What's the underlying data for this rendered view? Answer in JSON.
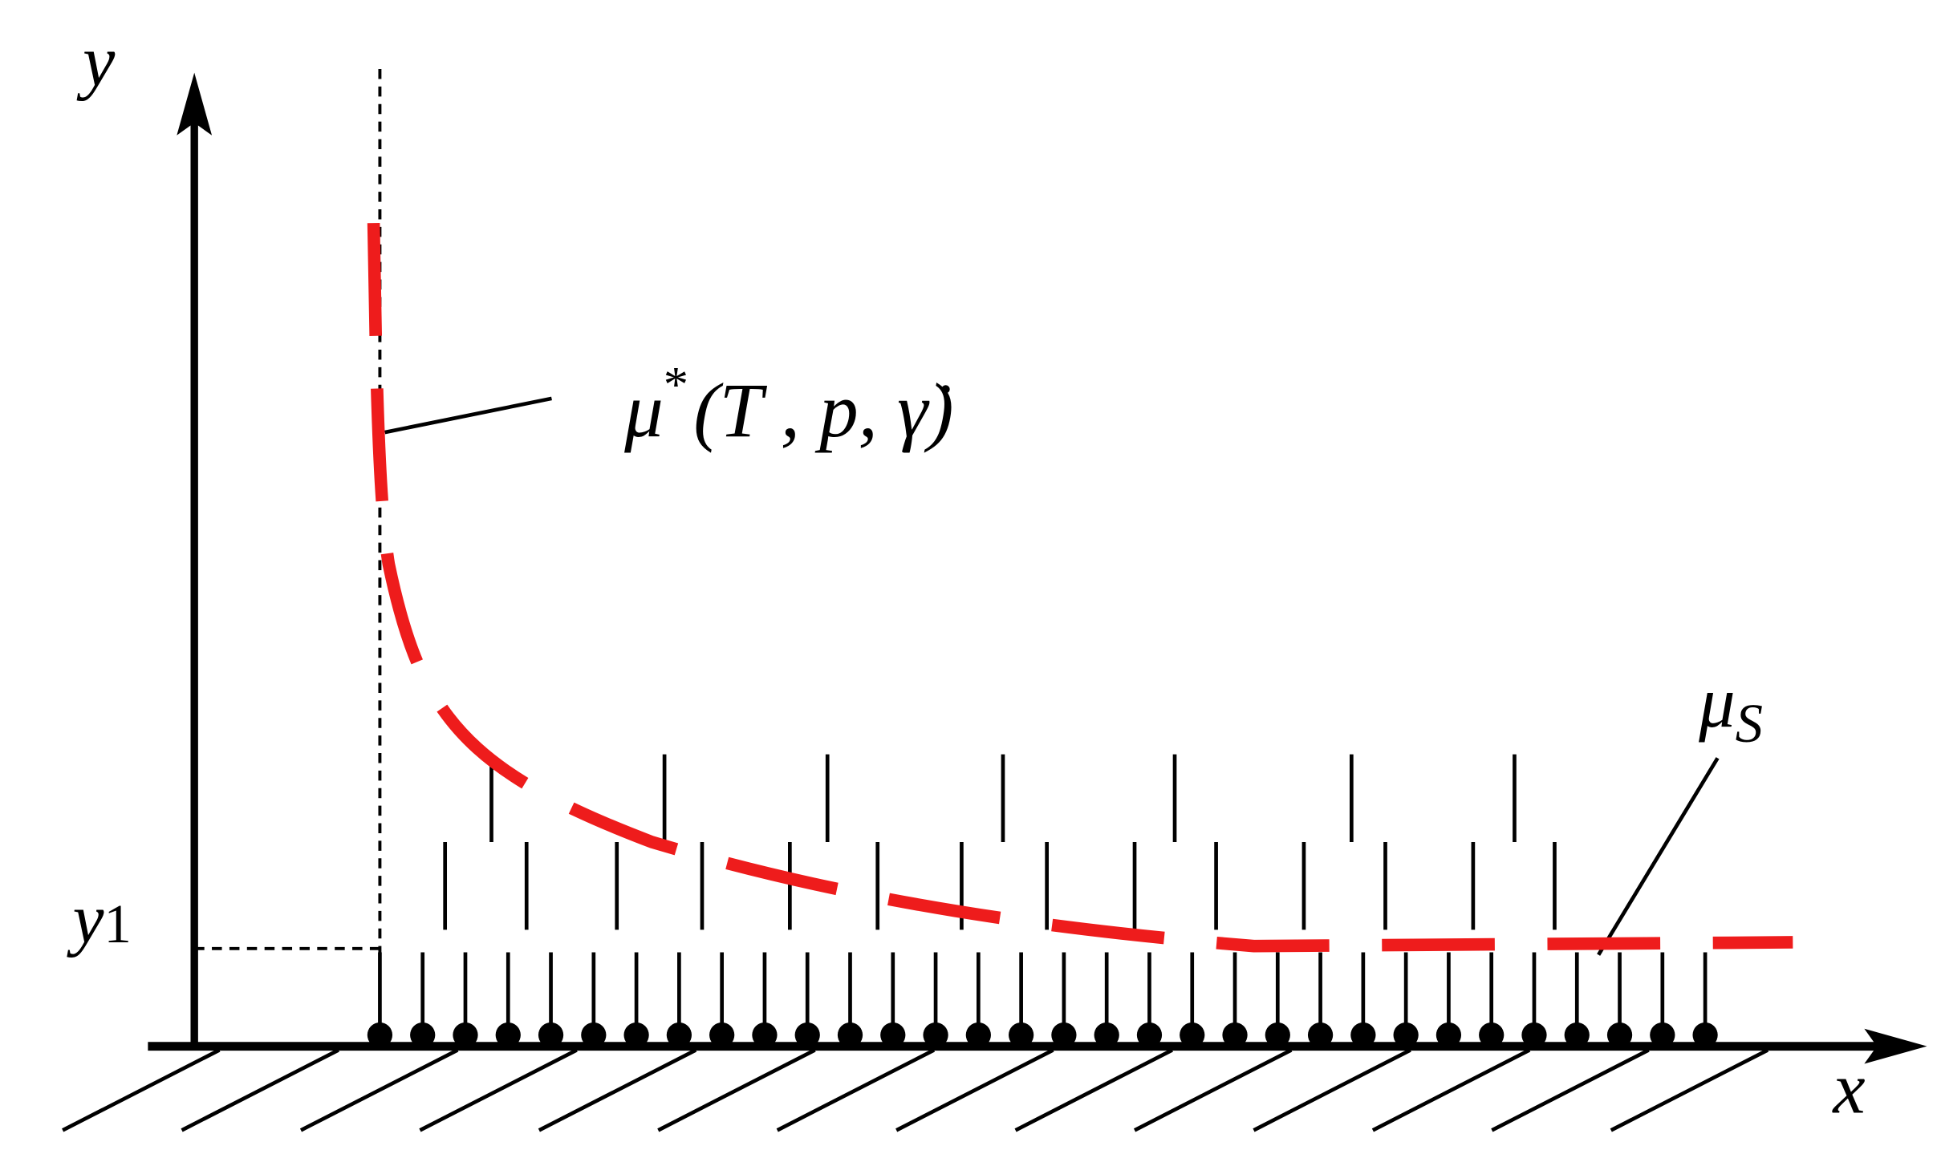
{
  "labels": {
    "y_axis": "y",
    "x_axis": "x",
    "y1": {
      "base": "y",
      "sub": "1"
    },
    "mu_star": {
      "base": "μ",
      "sup": "*",
      "args": "(T , p, γ̇)"
    },
    "mu_s": {
      "base": "μ",
      "sub": "S"
    }
  }
}
